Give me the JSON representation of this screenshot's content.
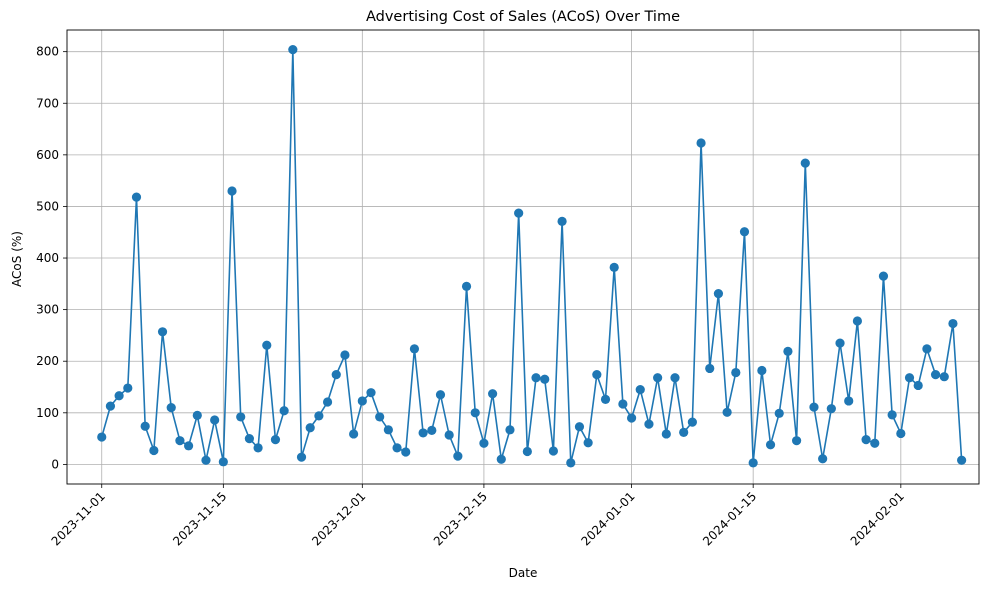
{
  "chart_data": {
    "type": "line",
    "title": "Advertising Cost of Sales (ACoS) Over Time",
    "xlabel": "Date",
    "ylabel": "ACoS (%)",
    "grid": true,
    "line_color": "#1f77b4",
    "marker": "circle",
    "x_start": "2023-11-01",
    "xlim": [
      "2023-10-28",
      "2024-02-10"
    ],
    "ylim": [
      -38,
      842
    ],
    "x_ticks": [
      "2023-11-01",
      "2023-11-15",
      "2023-12-01",
      "2023-12-15",
      "2024-01-01",
      "2024-01-15",
      "2024-02-01"
    ],
    "y_ticks": [
      0,
      100,
      200,
      300,
      400,
      500,
      600,
      700,
      800
    ],
    "values": [
      53,
      113,
      133,
      148,
      518,
      74,
      27,
      257,
      110,
      46,
      36,
      95,
      8,
      86,
      5,
      530,
      92,
      50,
      32,
      231,
      48,
      104,
      804,
      14,
      71,
      94,
      121,
      174,
      212,
      59,
      123,
      139,
      92,
      67,
      32,
      24,
      224,
      61,
      66,
      135,
      57,
      16,
      345,
      100,
      41,
      137,
      10,
      67,
      487,
      25,
      168,
      165,
      26,
      471,
      3,
      73,
      42,
      174,
      126,
      382,
      117,
      90,
      145,
      78,
      168,
      59,
      168,
      62,
      82,
      623,
      186,
      331,
      101,
      178,
      451,
      3,
      182,
      38,
      99,
      219,
      46,
      584,
      111,
      11,
      108,
      235,
      123,
      278,
      48,
      41,
      365,
      96,
      60,
      168,
      153,
      224,
      174,
      170,
      273,
      8
    ]
  }
}
